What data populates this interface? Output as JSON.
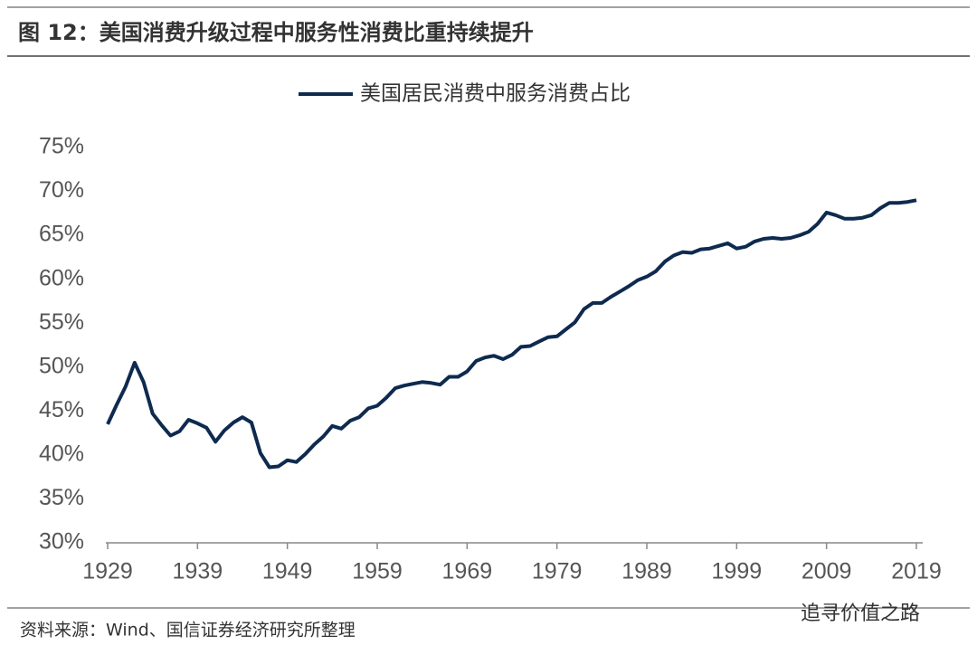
{
  "chart_data": {
    "type": "line",
    "title": "图 12：美国消费升级过程中服务性消费比重持续提升",
    "source": "资料来源：Wind、国信证券经济研究所整理",
    "watermark": "追寻价值之路",
    "legend": "top",
    "x": [
      1929,
      1930,
      1931,
      1932,
      1933,
      1934,
      1935,
      1936,
      1937,
      1938,
      1939,
      1940,
      1941,
      1942,
      1943,
      1944,
      1945,
      1946,
      1947,
      1948,
      1949,
      1950,
      1951,
      1952,
      1953,
      1954,
      1955,
      1956,
      1957,
      1958,
      1959,
      1960,
      1961,
      1962,
      1963,
      1964,
      1965,
      1966,
      1967,
      1968,
      1969,
      1970,
      1971,
      1972,
      1973,
      1974,
      1975,
      1976,
      1977,
      1978,
      1979,
      1980,
      1981,
      1982,
      1983,
      1984,
      1985,
      1986,
      1987,
      1988,
      1989,
      1990,
      1991,
      1992,
      1993,
      1994,
      1995,
      1996,
      1997,
      1998,
      1999,
      2000,
      2001,
      2002,
      2003,
      2004,
      2005,
      2006,
      2007,
      2008,
      2009,
      2010,
      2011,
      2012,
      2013,
      2014,
      2015,
      2016,
      2017,
      2018,
      2019
    ],
    "series": [
      {
        "name": "美国居民消费中服务消费占比",
        "color": "#0e2a4f",
        "values": [
          43.5,
          45.7,
          47.8,
          50.5,
          48.3,
          44.7,
          43.4,
          42.2,
          42.7,
          44.0,
          43.6,
          43.1,
          41.5,
          42.8,
          43.7,
          44.3,
          43.7,
          40.2,
          38.6,
          38.7,
          39.4,
          39.2,
          40.1,
          41.2,
          42.1,
          43.3,
          43.0,
          43.9,
          44.3,
          45.3,
          45.6,
          46.5,
          47.6,
          47.9,
          48.1,
          48.3,
          48.2,
          48.0,
          48.9,
          48.9,
          49.5,
          50.7,
          51.1,
          51.3,
          50.9,
          51.4,
          52.3,
          52.4,
          52.9,
          53.4,
          53.5,
          54.3,
          55.1,
          56.6,
          57.3,
          57.3,
          58.0,
          58.6,
          59.2,
          59.9,
          60.3,
          60.9,
          62.0,
          62.7,
          63.1,
          63.0,
          63.4,
          63.5,
          63.8,
          64.1,
          63.5,
          63.7,
          64.3,
          64.6,
          64.7,
          64.6,
          64.7,
          65.0,
          65.4,
          66.3,
          67.6,
          67.3,
          66.9,
          66.9,
          67.0,
          67.3,
          68.1,
          68.7,
          68.7,
          68.8,
          69.0
        ]
      }
    ],
    "xlim": [
      1929,
      2019
    ],
    "xticks": [
      1929,
      1939,
      1949,
      1959,
      1969,
      1979,
      1989,
      1999,
      2009,
      2019
    ],
    "ylim": [
      30,
      75
    ],
    "yticks": [
      {
        "value": 30,
        "label": "30%"
      },
      {
        "value": 35,
        "label": "35%"
      },
      {
        "value": 40,
        "label": "40%"
      },
      {
        "value": 45,
        "label": "45%"
      },
      {
        "value": 50,
        "label": "50%"
      },
      {
        "value": 55,
        "label": "55%"
      },
      {
        "value": 60,
        "label": "60%"
      },
      {
        "value": 65,
        "label": "65%"
      },
      {
        "value": 70,
        "label": "70%"
      },
      {
        "value": 75,
        "label": "75%"
      }
    ],
    "grid": false
  }
}
